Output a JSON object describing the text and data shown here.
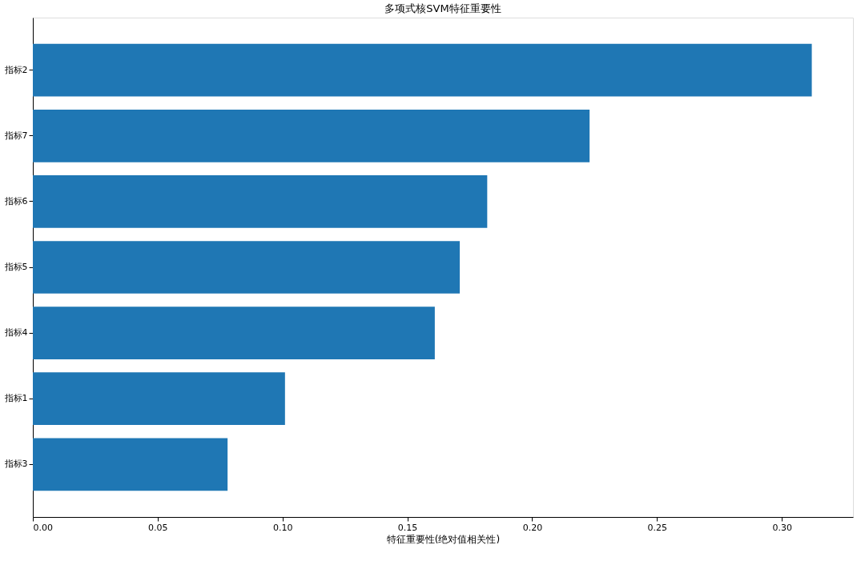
{
  "chart_data": {
    "type": "bar",
    "orientation": "horizontal",
    "title": "多项式核SVM特征重要性",
    "xlabel": "特征重要性(绝对值相关性)",
    "categories": [
      "指标2",
      "指标7",
      "指标6",
      "指标5",
      "指标4",
      "指标1",
      "指标3"
    ],
    "values": [
      0.312,
      0.223,
      0.182,
      0.171,
      0.161,
      0.101,
      0.078
    ],
    "color": "#1f77b4",
    "xlim": [
      0,
      0.3285
    ],
    "xticks": [
      {
        "value": 0,
        "label": "0.00"
      },
      {
        "value": 0.05,
        "label": "0.05"
      },
      {
        "value": 0.1,
        "label": "0.10"
      },
      {
        "value": 0.15,
        "label": "0.15"
      },
      {
        "value": 0.2,
        "label": "0.20"
      },
      {
        "value": 0.25,
        "label": "0.25"
      },
      {
        "value": 0.3,
        "label": "0.30"
      }
    ],
    "grid": false
  }
}
